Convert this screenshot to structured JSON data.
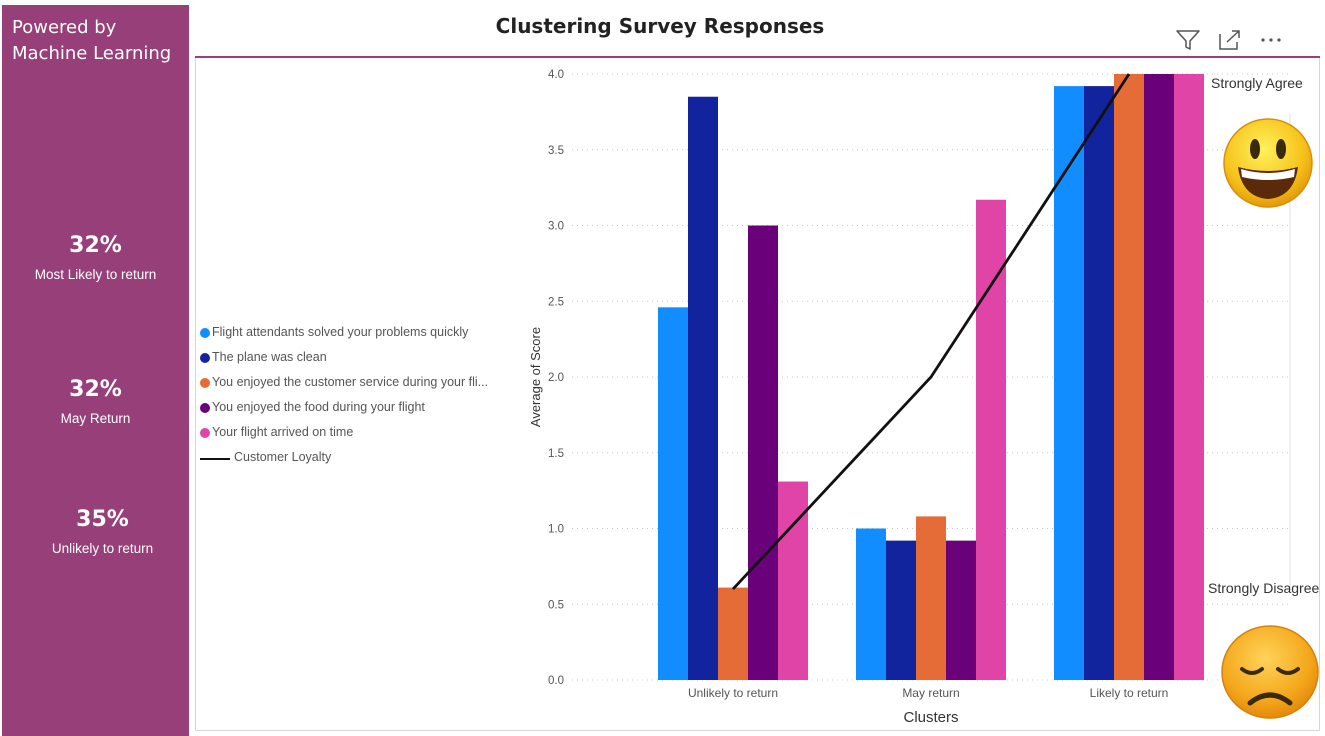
{
  "side_panel": {
    "title": "Powered by Machine Learning",
    "stats": [
      {
        "value": "32%",
        "label": "Most Likely to return"
      },
      {
        "value": "32%",
        "label": "May Return"
      },
      {
        "value": "35%",
        "label": "Unlikely to return"
      }
    ]
  },
  "toolbar": {
    "icons": [
      "filter-icon",
      "focus-mode-icon",
      "more-options-icon"
    ]
  },
  "legend": {
    "items": [
      {
        "label": "Flight attendants solved your problems quickly",
        "color": "#118dff"
      },
      {
        "label": "The plane was clean",
        "color": "#12239e"
      },
      {
        "label": "You enjoyed the customer service during your fli...",
        "color": "#e66c37"
      },
      {
        "label": "You enjoyed the food during your flight",
        "color": "#6b007b"
      },
      {
        "label": "Your flight arrived on time",
        "color": "#e044a7"
      }
    ],
    "line_label": "Customer Loyalty",
    "line_color": "#111111"
  },
  "annotations": {
    "top": "Strongly Agree",
    "bottom": "Strongly Disagree"
  },
  "chart_data": {
    "type": "bar",
    "title": "Clustering Survey Responses",
    "xlabel": "Clusters",
    "ylabel": "Average of Score",
    "ylim": [
      0,
      4
    ],
    "yticks": [
      "0.0",
      "0.5",
      "1.0",
      "1.5",
      "2.0",
      "2.5",
      "3.0",
      "3.5",
      "4.0"
    ],
    "categories": [
      "Unlikely to return",
      "May return",
      "Likely to return"
    ],
    "series": [
      {
        "name": "Flight attendants solved your problems quickly",
        "color": "#118dff",
        "values": [
          2.46,
          1.0,
          3.92
        ]
      },
      {
        "name": "The plane was clean",
        "color": "#12239e",
        "values": [
          3.85,
          0.92,
          3.92
        ]
      },
      {
        "name": "You enjoyed the customer service during your flight",
        "color": "#e66c37",
        "values": [
          0.61,
          1.08,
          4.0
        ]
      },
      {
        "name": "You enjoyed the food during your flight",
        "color": "#6b007b",
        "values": [
          3.0,
          0.92,
          4.0
        ]
      },
      {
        "name": "Your flight arrived on time",
        "color": "#e044a7",
        "values": [
          1.31,
          3.17,
          4.0
        ]
      }
    ],
    "line_series": {
      "name": "Customer Loyalty",
      "color": "#111111",
      "values": [
        0.6,
        2.0,
        4.0
      ]
    },
    "grid": true
  }
}
